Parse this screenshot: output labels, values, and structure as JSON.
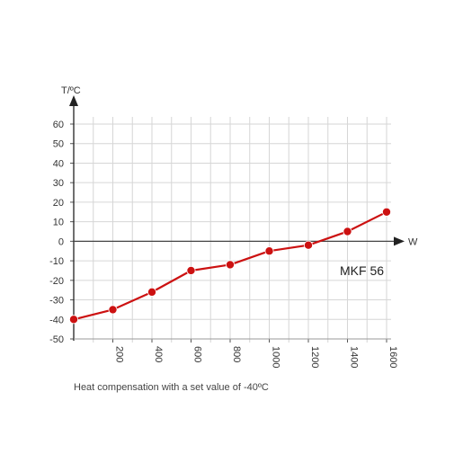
{
  "chart_data": {
    "type": "line",
    "xlabel": "W",
    "ylabel": "T/ºC",
    "xlim": [
      0,
      1600
    ],
    "ylim": [
      -50,
      60
    ],
    "x_ticks": [
      "200",
      "400",
      "600",
      "800",
      "1000",
      "1200",
      "1400",
      "1600"
    ],
    "y_ticks": [
      "60",
      "50",
      "40",
      "30",
      "20",
      "10",
      "0",
      "-10",
      "-20",
      "-30",
      "-40",
      "-50"
    ],
    "grid": true,
    "series": [
      {
        "name": "MKF 56",
        "color": "#cc1111",
        "x": [
          0,
          200,
          400,
          600,
          800,
          1000,
          1200,
          1400,
          1600
        ],
        "y": [
          -40,
          -35,
          -26,
          -15,
          -12,
          -5,
          -2,
          5,
          15
        ]
      }
    ],
    "caption": "Heat compensation with a set value of -40ºC"
  }
}
